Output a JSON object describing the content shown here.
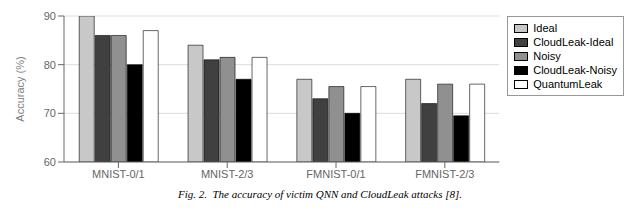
{
  "chart_data": {
    "type": "bar",
    "caption": "Fig. 2.  The accuracy of victim QNN and CloudLeak attacks [8].",
    "ylabel": "Accuracy (%)",
    "categories": [
      "MNIST-0/1",
      "MNIST-2/3",
      "FMNIST-0/1",
      "FMNIST-2/3"
    ],
    "series": [
      {
        "name": "Ideal",
        "color": "#c8c8c8",
        "values": [
          90.0,
          84.0,
          77.0,
          77.0
        ]
      },
      {
        "name": "CloudLeak-Ideal",
        "color": "#404040",
        "values": [
          86.0,
          81.0,
          73.0,
          72.0
        ]
      },
      {
        "name": "Noisy",
        "color": "#909090",
        "values": [
          86.0,
          81.5,
          75.5,
          76.0
        ]
      },
      {
        "name": "CloudLeak-Noisy",
        "color": "#000000",
        "values": [
          80.0,
          77.0,
          70.0,
          69.5
        ]
      },
      {
        "name": "QuantumLeak",
        "color": "#ffffff",
        "values": [
          87.0,
          81.5,
          75.5,
          76.0
        ]
      }
    ],
    "ylim": [
      60,
      90
    ],
    "yticks": [
      60,
      70,
      80,
      90
    ],
    "grid": true,
    "legend": "upper right"
  }
}
